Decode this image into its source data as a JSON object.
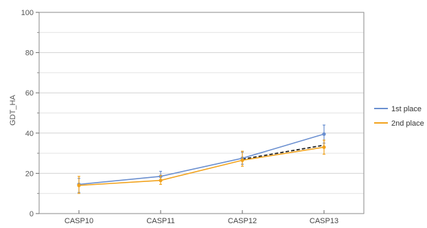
{
  "chart_data": {
    "type": "line",
    "title": "",
    "xlabel": "",
    "ylabel": "GDT_HA",
    "categories": [
      "CASP10",
      "CASP11",
      "CASP12",
      "CASP13"
    ],
    "ylim": [
      0,
      100
    ],
    "yticks": [
      0,
      20,
      40,
      60,
      80,
      100
    ],
    "grid": true,
    "legend_position": "right",
    "series": [
      {
        "name": "1st place",
        "color": "#6a8fd0",
        "values": [
          14.5,
          18.5,
          27.5,
          39.5
        ],
        "error_low": [
          10.5,
          16.0,
          24.5,
          35.0
        ],
        "error_high": [
          17.5,
          21.0,
          30.5,
          44.0
        ]
      },
      {
        "name": "2nd place",
        "color": "#f2a21b",
        "values": [
          14.0,
          16.5,
          26.5,
          33.0
        ],
        "error_low": [
          10.0,
          14.5,
          23.5,
          29.5
        ],
        "error_high": [
          18.5,
          19.0,
          31.0,
          36.5
        ]
      }
    ],
    "extra_line": {
      "style": "dashed",
      "color": "#222222",
      "x_range": [
        "CASP12",
        "CASP13"
      ],
      "values": [
        27.0,
        34.0
      ]
    }
  }
}
